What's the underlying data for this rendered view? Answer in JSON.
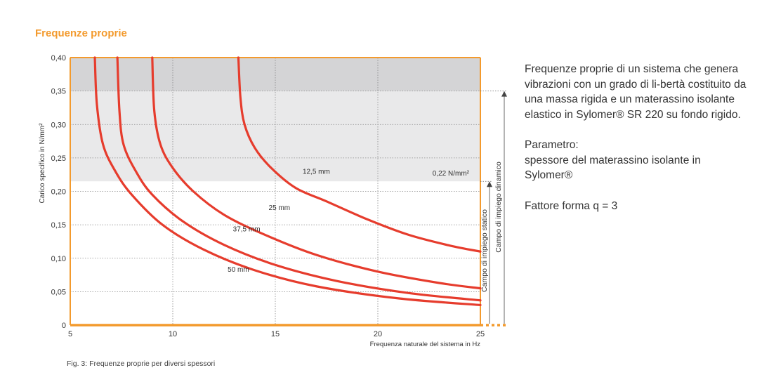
{
  "section_title": "Frequenze proprie",
  "caption": "Fig. 3: Frequenze proprie per diversi spessori",
  "description": {
    "paragraph1": "Frequenze proprie di un sistema che genera vibrazioni con un grado di li-bertà costituito da una massa rigida e un materassino isolante elastico in Sylomer® SR 220 su fondo rigido.",
    "parameter_label": "Parametro:",
    "parameter_value": "spessore del materassino isolante in Sylomer®",
    "form_factor": "Fattore forma q = 3"
  },
  "colors": {
    "accent": "#f39a2d",
    "curve": "#e63c2d",
    "band_static": "#e9e9ea",
    "band_dynamic": "#d4d4d6"
  },
  "chart_data": {
    "type": "line",
    "xlabel": "Frequenza naturale del sistema in Hz",
    "ylabel": "Carico specifico in N/mm²",
    "xlim": [
      5,
      25
    ],
    "ylim": [
      0,
      0.4
    ],
    "x_ticks": [
      5,
      10,
      15,
      20,
      25
    ],
    "x_tick_labels": [
      "5",
      "10",
      "15",
      "20",
      "25"
    ],
    "y_ticks": [
      0,
      0.05,
      0.1,
      0.15,
      0.2,
      0.25,
      0.3,
      0.35,
      0.4
    ],
    "y_tick_labels": [
      "0",
      "0,05",
      "0,10",
      "0,15",
      "0,20",
      "0,25",
      "0,30",
      "0,35",
      "0,40"
    ],
    "grid": true,
    "bands": [
      {
        "name": "Campo di impiego statico",
        "y_from": 0,
        "y_to": 0.215
      },
      {
        "name": "Campo di impiego dinamico",
        "y_from": 0,
        "y_to": 0.35
      }
    ],
    "annotation_band_value": "0,22 N/mm²",
    "series": [
      {
        "name": "12,5 mm",
        "x": [
          13.2,
          13.3,
          13.5,
          14.0,
          14.8,
          16.0,
          17.5,
          19.5,
          21.5,
          23.5,
          25.0
        ],
        "y": [
          0.4,
          0.34,
          0.3,
          0.265,
          0.235,
          0.205,
          0.185,
          0.158,
          0.135,
          0.119,
          0.11
        ]
      },
      {
        "name": "25 mm",
        "x": [
          9.0,
          9.1,
          9.4,
          10.0,
          11.0,
          12.5,
          14.5,
          17.0,
          20.0,
          23.0,
          25.0
        ],
        "y": [
          0.4,
          0.32,
          0.27,
          0.235,
          0.2,
          0.165,
          0.135,
          0.105,
          0.08,
          0.063,
          0.055
        ]
      },
      {
        "name": "37,5 mm",
        "x": [
          7.3,
          7.4,
          7.6,
          8.2,
          9.0,
          10.5,
          12.5,
          15.0,
          18.0,
          21.5,
          25.0
        ],
        "y": [
          0.4,
          0.32,
          0.27,
          0.23,
          0.195,
          0.155,
          0.12,
          0.09,
          0.066,
          0.048,
          0.037
        ]
      },
      {
        "name": "50 mm",
        "x": [
          6.2,
          6.3,
          6.6,
          7.2,
          8.0,
          9.5,
          11.5,
          14.0,
          17.0,
          21.0,
          25.0
        ],
        "y": [
          0.4,
          0.33,
          0.27,
          0.23,
          0.195,
          0.15,
          0.113,
          0.082,
          0.058,
          0.04,
          0.03
        ]
      }
    ]
  }
}
